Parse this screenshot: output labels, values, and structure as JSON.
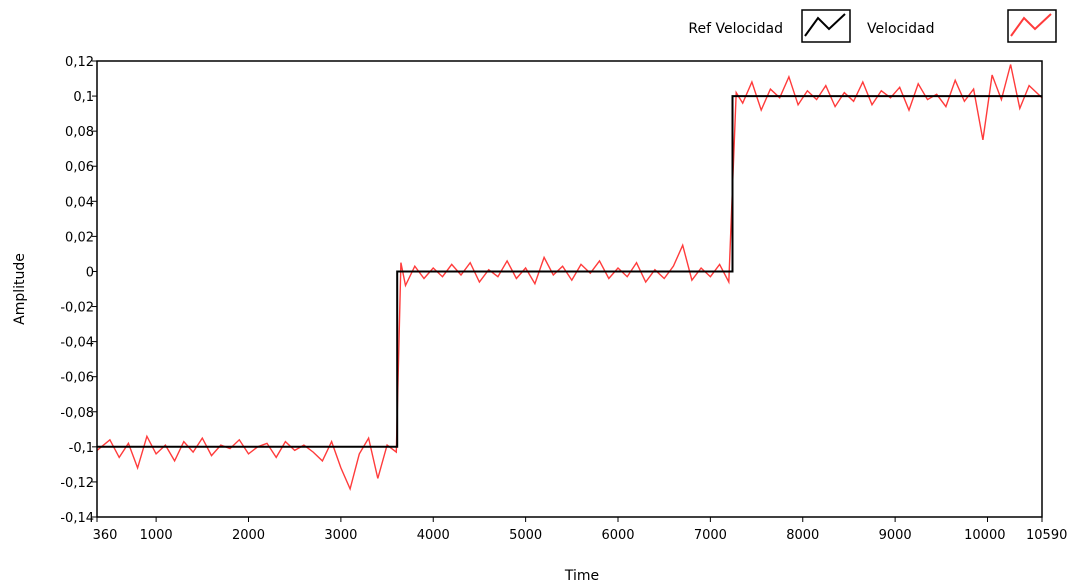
{
  "chart_data": {
    "type": "line",
    "xlabel": "Time",
    "ylabel": "Amplitude",
    "xlim": [
      360,
      10590
    ],
    "ylim": [
      -0.14,
      0.12
    ],
    "grid": false,
    "legend_placement": "top-right",
    "x_ticks": [
      {
        "value": 360,
        "label": "360"
      },
      {
        "value": 1000,
        "label": "1000"
      },
      {
        "value": 2000,
        "label": "2000"
      },
      {
        "value": 3000,
        "label": "3000"
      },
      {
        "value": 4000,
        "label": "4000"
      },
      {
        "value": 5000,
        "label": "5000"
      },
      {
        "value": 6000,
        "label": "6000"
      },
      {
        "value": 7000,
        "label": "7000"
      },
      {
        "value": 8000,
        "label": "8000"
      },
      {
        "value": 9000,
        "label": "9000"
      },
      {
        "value": 10000,
        "label": "10000"
      },
      {
        "value": 10590,
        "label": "10590"
      }
    ],
    "y_ticks": [
      {
        "value": 0.12,
        "label": "0,12"
      },
      {
        "value": 0.1,
        "label": "0,1"
      },
      {
        "value": 0.08,
        "label": "0,08"
      },
      {
        "value": 0.06,
        "label": "0,06"
      },
      {
        "value": 0.04,
        "label": "0,04"
      },
      {
        "value": 0.02,
        "label": "0,02"
      },
      {
        "value": 0,
        "label": "0"
      },
      {
        "value": -0.02,
        "label": "-0,02"
      },
      {
        "value": -0.04,
        "label": "-0,04"
      },
      {
        "value": -0.06,
        "label": "-0,06"
      },
      {
        "value": -0.08,
        "label": "-0,08"
      },
      {
        "value": -0.1,
        "label": "-0,1"
      },
      {
        "value": -0.12,
        "label": "-0,12"
      },
      {
        "value": -0.14,
        "label": "-0,14"
      }
    ],
    "series": [
      {
        "name": "Ref Velocidad",
        "color": "#000000",
        "x": [
          360,
          3610,
          3610,
          7240,
          7240,
          10590
        ],
        "y": [
          -0.1,
          -0.1,
          0,
          0,
          0.1,
          0.1
        ]
      },
      {
        "name": "Velocidad",
        "color": "#ff3b3b",
        "x": [
          360,
          500,
          600,
          700,
          800,
          900,
          1000,
          1100,
          1200,
          1300,
          1400,
          1500,
          1600,
          1700,
          1800,
          1900,
          2000,
          2100,
          2200,
          2300,
          2400,
          2500,
          2600,
          2700,
          2800,
          2900,
          3000,
          3100,
          3200,
          3300,
          3400,
          3500,
          3600,
          3650,
          3700,
          3800,
          3900,
          4000,
          4100,
          4200,
          4300,
          4400,
          4500,
          4600,
          4700,
          4800,
          4900,
          5000,
          5100,
          5200,
          5300,
          5400,
          5500,
          5600,
          5700,
          5800,
          5900,
          6000,
          6100,
          6200,
          6300,
          6400,
          6500,
          6600,
          6700,
          6800,
          6900,
          7000,
          7100,
          7200,
          7280,
          7350,
          7450,
          7550,
          7650,
          7750,
          7850,
          7950,
          8050,
          8150,
          8250,
          8350,
          8450,
          8550,
          8650,
          8750,
          8850,
          8950,
          9050,
          9150,
          9250,
          9350,
          9450,
          9550,
          9650,
          9750,
          9850,
          9950,
          10050,
          10150,
          10250,
          10350,
          10450,
          10590
        ],
        "y": [
          -0.102,
          -0.096,
          -0.106,
          -0.098,
          -0.112,
          -0.094,
          -0.104,
          -0.099,
          -0.108,
          -0.097,
          -0.103,
          -0.095,
          -0.105,
          -0.099,
          -0.101,
          -0.096,
          -0.104,
          -0.1,
          -0.098,
          -0.106,
          -0.097,
          -0.102,
          -0.099,
          -0.103,
          -0.108,
          -0.097,
          -0.112,
          -0.124,
          -0.104,
          -0.095,
          -0.118,
          -0.099,
          -0.103,
          0.005,
          -0.008,
          0.003,
          -0.004,
          0.002,
          -0.003,
          0.004,
          -0.002,
          0.005,
          -0.006,
          0.001,
          -0.003,
          0.006,
          -0.004,
          0.002,
          -0.007,
          0.008,
          -0.002,
          0.003,
          -0.005,
          0.004,
          -0.001,
          0.006,
          -0.004,
          0.002,
          -0.003,
          0.005,
          -0.006,
          0.001,
          -0.004,
          0.003,
          0.015,
          -0.005,
          0.002,
          -0.003,
          0.004,
          -0.006,
          0.102,
          0.096,
          0.108,
          0.092,
          0.104,
          0.099,
          0.111,
          0.095,
          0.103,
          0.098,
          0.106,
          0.094,
          0.102,
          0.097,
          0.108,
          0.095,
          0.103,
          0.099,
          0.105,
          0.092,
          0.107,
          0.098,
          0.101,
          0.094,
          0.109,
          0.097,
          0.104,
          0.075,
          0.112,
          0.098,
          0.118,
          0.093,
          0.106,
          0.099
        ]
      }
    ]
  }
}
